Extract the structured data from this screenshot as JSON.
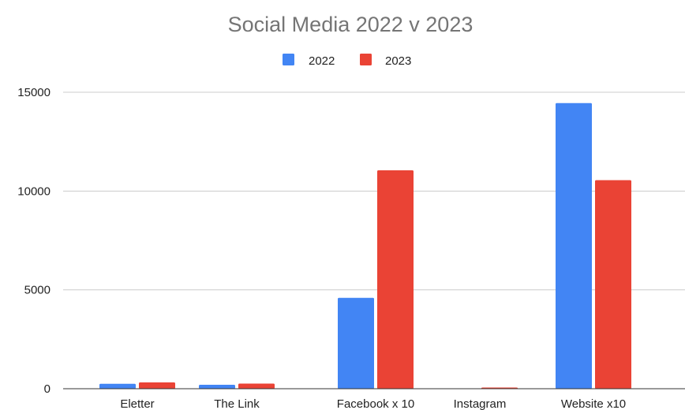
{
  "chart_data": {
    "type": "bar",
    "title": "Social Media 2022 v 2023",
    "xlabel": "",
    "ylabel": "",
    "ylim": [
      0,
      15000
    ],
    "yticks": [
      "0",
      "5000",
      "10000",
      "15000"
    ],
    "categories": [
      "Eletter",
      "The Link",
      "Facebook x 10",
      "Instagram",
      "Website x10"
    ],
    "series": [
      {
        "name": "2022",
        "color": "#4285f4",
        "values": [
          250,
          200,
          4600,
          0,
          14450
        ]
      },
      {
        "name": "2023",
        "color": "#ea4335",
        "values": [
          320,
          260,
          11050,
          60,
          10550
        ]
      }
    ],
    "legend_position": "top",
    "grid": true
  }
}
